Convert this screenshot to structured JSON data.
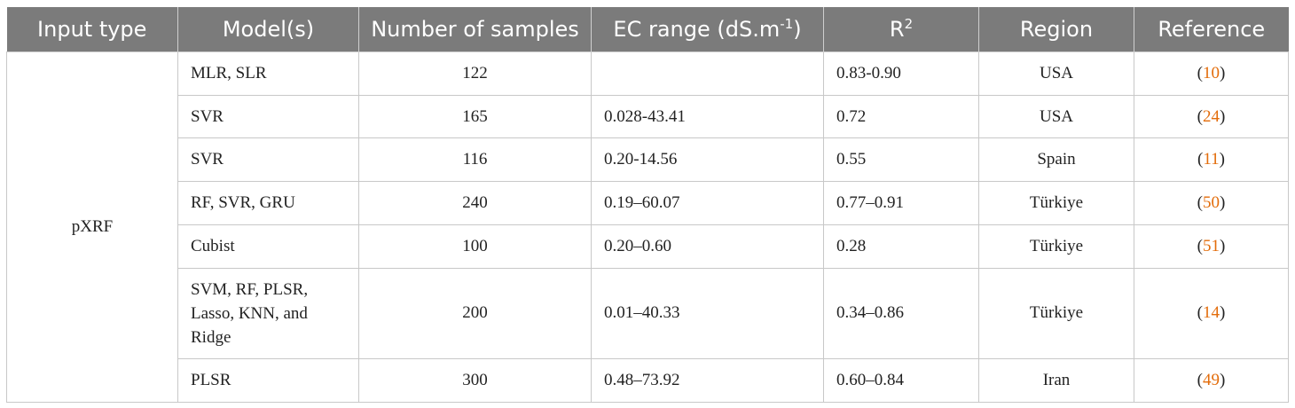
{
  "headers": {
    "input_type": "Input type",
    "models": "Model(s)",
    "samples": "Number of samples",
    "ec_range": "EC range (dS.m",
    "ec_range_sup": "-1",
    "ec_range_close": ")",
    "r2": "R",
    "r2_sup": "2",
    "region": "Region",
    "reference": "Reference"
  },
  "input_type": "pXRF",
  "rows": [
    {
      "models": "MLR, SLR",
      "samples": "122",
      "ec": "",
      "r2": "0.83-0.90",
      "region": "USA",
      "ref": "10"
    },
    {
      "models": "SVR",
      "samples": "165",
      "ec": "0.028-43.41",
      "r2": "0.72",
      "region": "USA",
      "ref": "24"
    },
    {
      "models": "SVR",
      "samples": "116",
      "ec": "0.20-14.56",
      "r2": "0.55",
      "region": "Spain",
      "ref": "11"
    },
    {
      "models": "RF, SVR, GRU",
      "samples": "240",
      "ec": "0.19–60.07",
      "r2": "0.77–0.91",
      "region": "Türkiye",
      "ref": "50"
    },
    {
      "models": "Cubist",
      "samples": "100",
      "ec": "0.20–0.60",
      "r2": "0.28",
      "region": "Türkiye",
      "ref": "51"
    },
    {
      "models_lines": [
        "SVM, RF, PLSR,",
        "Lasso, KNN, and",
        "Ridge"
      ],
      "samples": "200",
      "ec": "0.01–40.33",
      "r2": "0.34–0.86",
      "region": "Türkiye",
      "ref": "14"
    },
    {
      "models": "PLSR",
      "samples": "300",
      "ec": "0.48–73.92",
      "r2": "0.60–0.84",
      "region": "Iran",
      "ref": "49"
    }
  ],
  "colors": {
    "header_bg": "#7b7b7b",
    "reference_link": "#e36c0a"
  }
}
